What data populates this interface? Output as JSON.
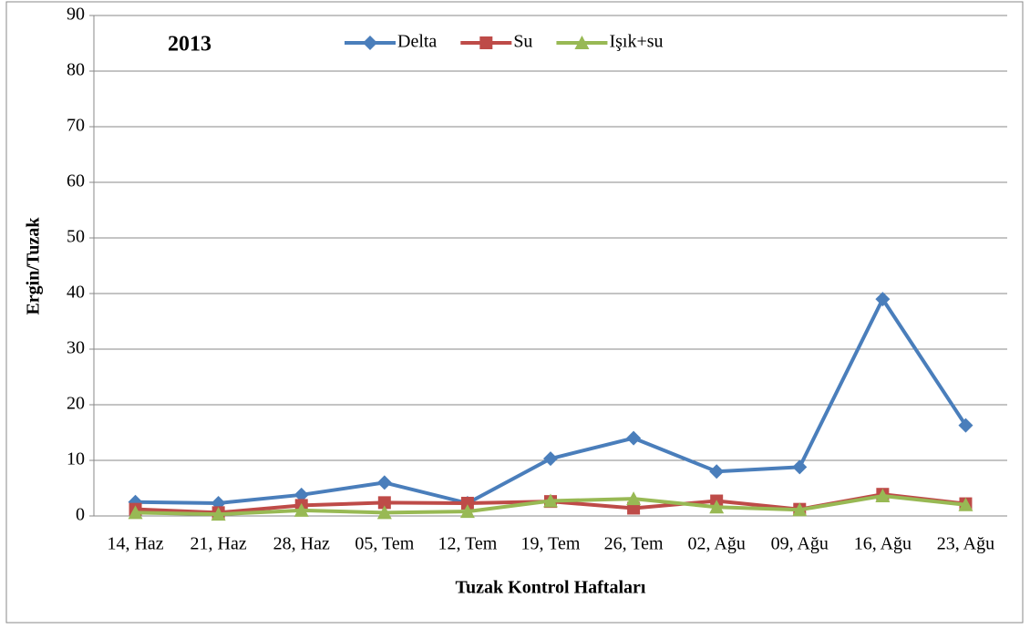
{
  "chart_data": {
    "type": "line",
    "annotation": "2013",
    "xlabel": "Tuzak Kontrol Haftaları",
    "ylabel": "Ergin/Tuzak",
    "categories": [
      "14, Haz",
      "21, Haz",
      "28, Haz",
      "05, Tem",
      "12, Tem",
      "19, Tem",
      "26, Tem",
      "02, Ağu",
      "09, Ağu",
      "16, Ağu",
      "23, Ağu"
    ],
    "series": [
      {
        "name": "Delta",
        "color": "#4a7ebb",
        "marker": "diamond",
        "values": [
          2.5,
          2.3,
          3.8,
          6,
          2.3,
          10.3,
          14,
          8,
          8.8,
          39,
          16.3
        ]
      },
      {
        "name": "Su",
        "color": "#be4b48",
        "marker": "square",
        "values": [
          1.2,
          0.6,
          1.9,
          2.4,
          2.3,
          2.6,
          1.4,
          2.7,
          1.2,
          3.9,
          2.2
        ]
      },
      {
        "name": "Işık+su",
        "color": "#98b954",
        "marker": "triangle",
        "values": [
          0.6,
          0.3,
          1.0,
          0.6,
          0.8,
          2.7,
          3.1,
          1.6,
          1.1,
          3.6,
          2.0
        ]
      }
    ],
    "ylim": [
      0,
      90
    ],
    "yticks": [
      0,
      10,
      20,
      30,
      40,
      50,
      60,
      70,
      80,
      90
    ],
    "grid": true,
    "legend": "top"
  }
}
